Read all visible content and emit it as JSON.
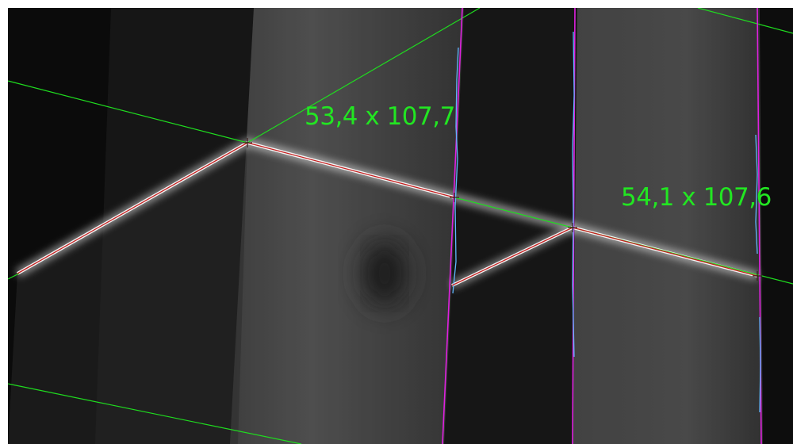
{
  "measurements": [
    {
      "label": "53,4 x 107,7"
    },
    {
      "label": "54,1 x 107,6"
    }
  ],
  "colors": {
    "measurement_text": "#22e622",
    "reference_line": "#1fdc1f",
    "edge_boundary": "#e020e0",
    "profile_trace": "#c42020",
    "scan_highlight": "#5fb8ff",
    "frame_border": "#ffffff"
  },
  "icons": {
    "marker": "crosshair-marker-icon"
  }
}
